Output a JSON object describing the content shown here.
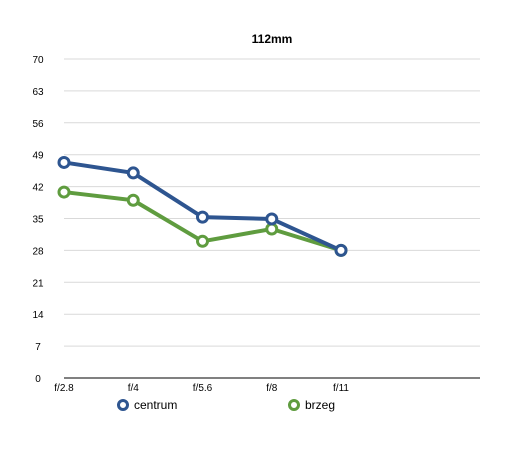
{
  "chart_data": {
    "type": "line",
    "title": "112mm",
    "categories": [
      "f/2.8",
      "f/4",
      "f/5.6",
      "f/8",
      "f/11"
    ],
    "y_ticks": [
      "0",
      "7",
      "14",
      "21",
      "28",
      "35",
      "42",
      "49",
      "56",
      "63",
      "70"
    ],
    "ylim": [
      0,
      70
    ],
    "grid": true,
    "legend_position": "bottom",
    "series": [
      {
        "name": "centrum",
        "color": "#2e5590",
        "values": [
          47.3,
          45.0,
          35.3,
          34.9,
          28.0
        ]
      },
      {
        "name": "brzeg",
        "color": "#5f9c3f",
        "values": [
          40.8,
          39.0,
          30.0,
          32.7,
          28.0
        ]
      }
    ]
  }
}
